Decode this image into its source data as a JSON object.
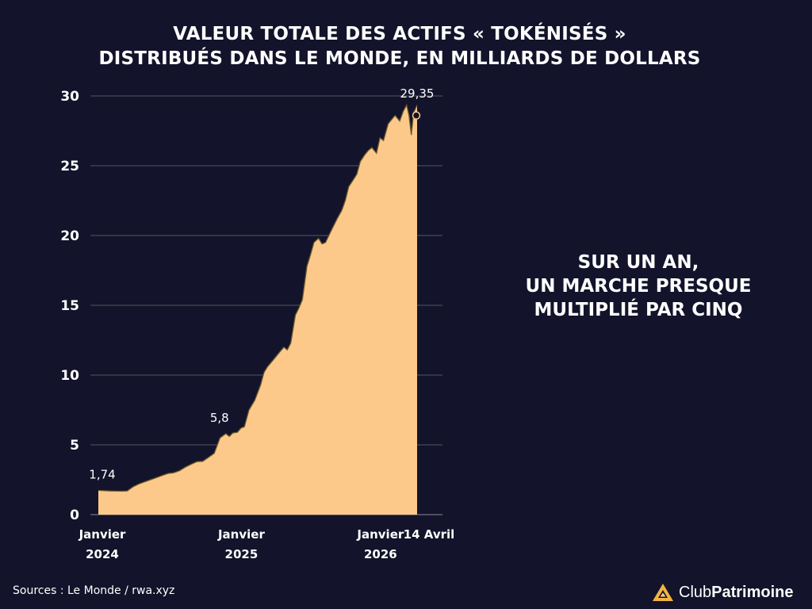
{
  "title": {
    "line1": "VALEUR TOTALE DES ACTIFS « TOKÉNISÉS »",
    "line2": "DISTRIBUÉS DANS LE MONDE, EN MILLIARDS DE DOLLARS"
  },
  "callout": {
    "line1": "SUR UN AN,",
    "line2": "UN MARCHE PRESQUE",
    "line3": "MULTIPLIÉ PAR CINQ"
  },
  "source": "Sources : Le Monde / rwa.xyz",
  "brand": {
    "part1": "Club",
    "part2": "Patrimoine"
  },
  "colors": {
    "background": "#13132b",
    "area_fill": "#fcc98a",
    "line": "#6b5a2b",
    "grid": "#555563",
    "text": "#ffffff",
    "logo_accent": "#f2b441"
  },
  "chart_data": {
    "type": "area",
    "title": "VALEUR TOTALE DES ACTIFS « TOKÉNISÉS » DISTRIBUÉS DANS LE MONDE, EN MILLIARDS DE DOLLARS",
    "xlabel": "",
    "ylabel": "",
    "ylim": [
      0,
      30
    ],
    "yticks": [
      0,
      5,
      10,
      15,
      20,
      25,
      30
    ],
    "grid": true,
    "xlim": [
      0,
      27.5
    ],
    "x_ticks": [
      {
        "x": 0,
        "line1": "Janvier",
        "line2": "2024"
      },
      {
        "x": 12,
        "line1": "Janvier",
        "line2": "2025"
      },
      {
        "x": 24,
        "line1": "Janvier",
        "line2": "2026"
      },
      {
        "x": 27.5,
        "line1": "14 Avril",
        "line2": ""
      }
    ],
    "x_unit": "months since January 2024",
    "x": [
      0,
      1,
      2,
      2.5,
      3,
      3.5,
      4,
      4.5,
      5,
      5.5,
      6,
      6.5,
      7,
      7.5,
      8,
      8.5,
      9,
      9.5,
      10,
      10.5,
      11,
      11.3,
      11.6,
      12,
      12.3,
      12.6,
      13,
      13.5,
      14,
      14.3,
      14.6,
      15,
      15.3,
      15.6,
      16,
      16.3,
      16.6,
      17,
      17.3,
      17.6,
      18,
      18.3,
      18.6,
      19,
      19.3,
      19.6,
      20,
      20.3,
      20.6,
      21,
      21.3,
      21.6,
      22,
      22.3,
      22.6,
      23,
      23.3,
      23.6,
      24,
      24.3,
      24.6,
      25,
      25.3,
      25.6,
      26,
      26.3,
      26.6,
      26.8,
      27,
      27.2,
      27.5
    ],
    "values": [
      1.74,
      1.7,
      1.68,
      1.7,
      2.0,
      2.2,
      2.35,
      2.5,
      2.65,
      2.8,
      2.95,
      3.0,
      3.15,
      3.4,
      3.6,
      3.8,
      3.82,
      4.1,
      4.4,
      5.5,
      5.8,
      5.6,
      5.85,
      5.9,
      6.2,
      6.3,
      7.5,
      8.2,
      9.3,
      10.2,
      10.6,
      11.0,
      11.3,
      11.6,
      12.0,
      11.8,
      12.3,
      14.3,
      14.8,
      15.4,
      17.8,
      18.6,
      19.5,
      19.8,
      19.4,
      19.5,
      20.2,
      20.7,
      21.2,
      21.8,
      22.5,
      23.5,
      24.0,
      24.4,
      25.3,
      25.8,
      26.1,
      26.3,
      25.9,
      27.0,
      26.8,
      28.0,
      28.3,
      28.6,
      28.2,
      28.9,
      29.35,
      28.6,
      27.2,
      28.8,
      29.35
    ],
    "annotations": [
      {
        "x": 0,
        "value": 1.74,
        "label": "1,74"
      },
      {
        "x": 11,
        "value": 5.8,
        "label": "5,8"
      },
      {
        "x": 27.5,
        "value": 29.35,
        "label": "29,35"
      }
    ]
  }
}
